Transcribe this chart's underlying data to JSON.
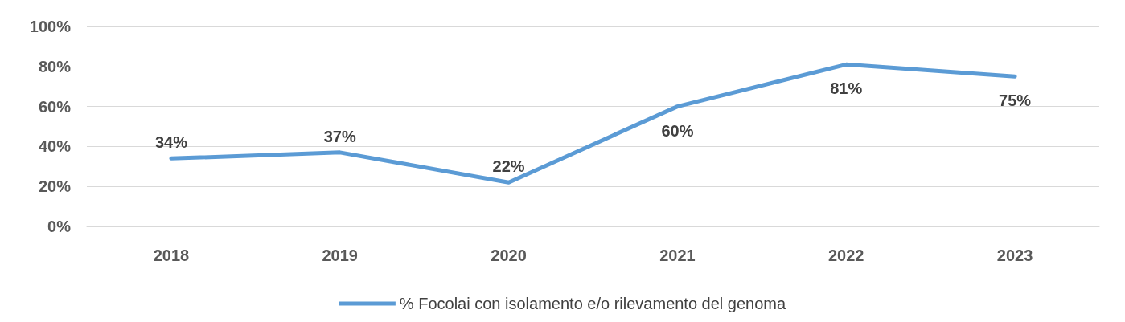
{
  "chart_data": {
    "type": "line",
    "categories": [
      "2018",
      "2019",
      "2020",
      "2021",
      "2022",
      "2023"
    ],
    "series": [
      {
        "name": "% Focolai con isolamento e/o rilevamento del genoma",
        "color": "#5b9bd5",
        "values": [
          34,
          37,
          22,
          60,
          81,
          75
        ],
        "value_labels": [
          "34%",
          "37%",
          "22%",
          "60%",
          "81%",
          "75%"
        ]
      }
    ],
    "ylim": [
      0,
      100
    ],
    "yticks": [
      {
        "value": 0,
        "label": "0%"
      },
      {
        "value": 20,
        "label": "20%"
      },
      {
        "value": 40,
        "label": "40%"
      },
      {
        "value": 60,
        "label": "60%"
      },
      {
        "value": 80,
        "label": "80%"
      },
      {
        "value": 100,
        "label": "100%"
      }
    ],
    "grid": "y",
    "legend": "bottom",
    "marker": "none",
    "line_style": "solid"
  }
}
